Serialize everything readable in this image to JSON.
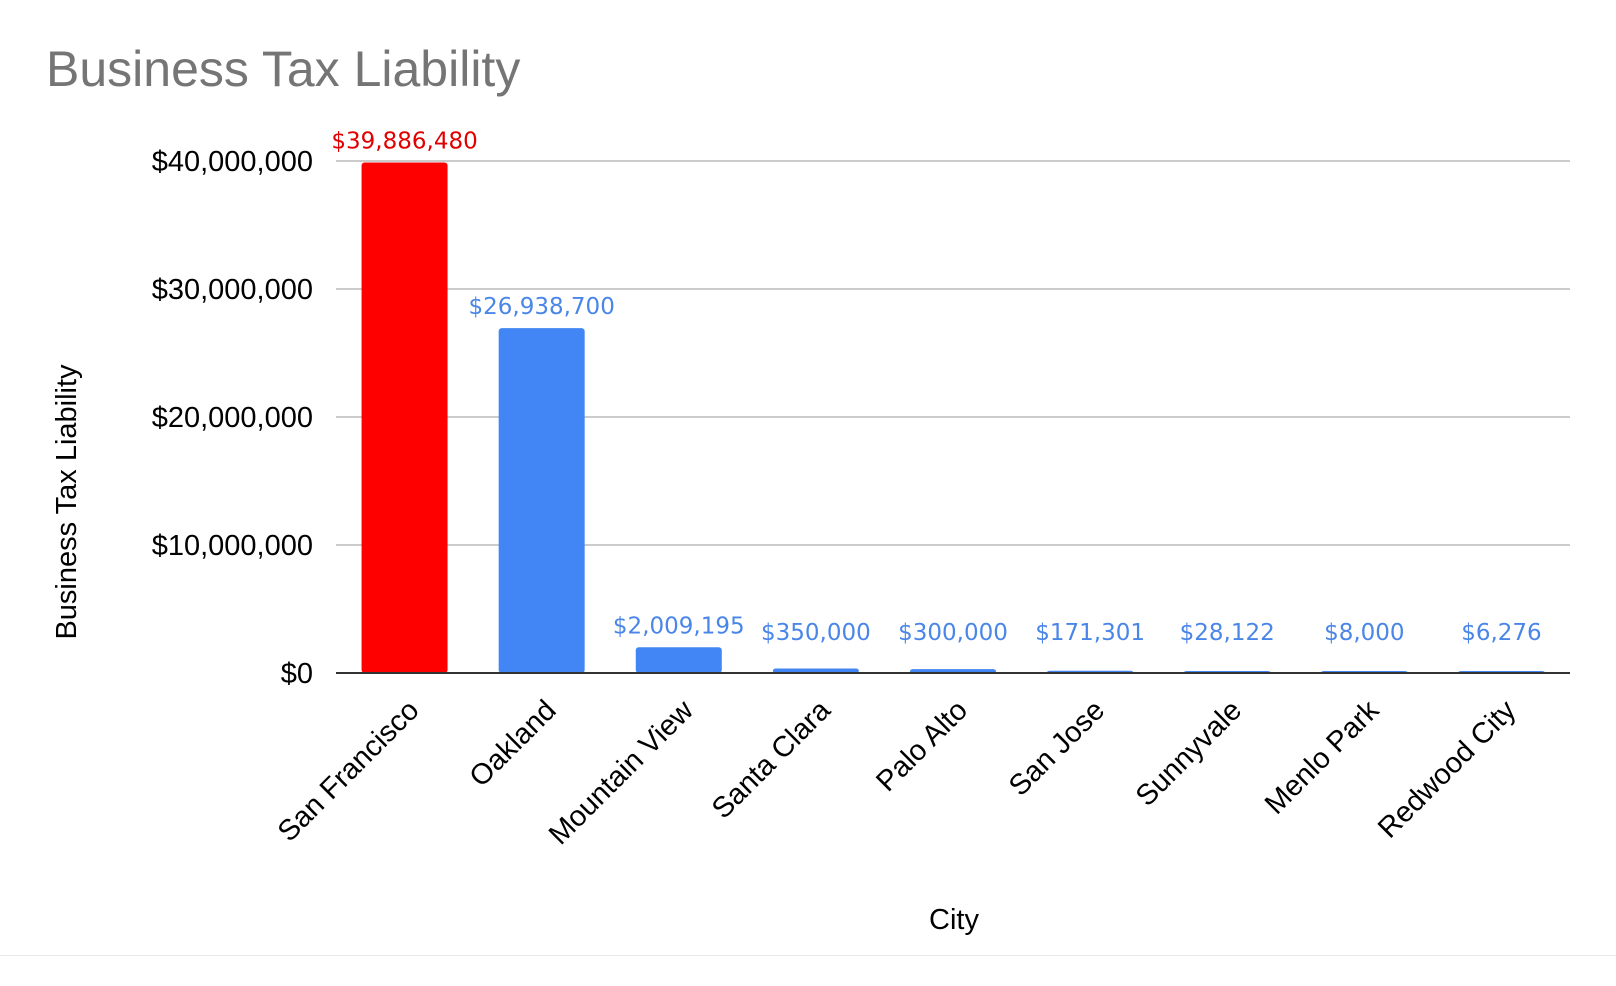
{
  "chart_data": {
    "type": "bar",
    "title": "Business Tax Liability",
    "xlabel": "City",
    "ylabel": "Business Tax Liability",
    "ylim": [
      0,
      40000000
    ],
    "yticks": [
      0,
      10000000,
      20000000,
      30000000,
      40000000
    ],
    "ytick_labels": [
      "$0",
      "$10,000,000",
      "$20,000,000",
      "$30,000,000",
      "$40,000,000"
    ],
    "grid": true,
    "categories": [
      "San Francisco",
      "Oakland",
      "Mountain View",
      "Santa Clara",
      "Palo Alto",
      "San Jose",
      "Sunnyvale",
      "Menlo Park",
      "Redwood City"
    ],
    "values": [
      39886480,
      26938700,
      2009195,
      350000,
      300000,
      171301,
      28122,
      8000,
      6276
    ],
    "data_labels": [
      "$39,886,480",
      "$26,938,700",
      "$2,009,195",
      "$350,000",
      "$300,000",
      "$171,301",
      "$28,122",
      "$8,000",
      "$6,276"
    ],
    "bar_colors": [
      "#ff0000",
      "#4285f4",
      "#4285f4",
      "#4285f4",
      "#4285f4",
      "#4285f4",
      "#4285f4",
      "#4285f4",
      "#4285f4"
    ],
    "label_colors": [
      "#e00000",
      "#4a86e8",
      "#4a86e8",
      "#4a86e8",
      "#4a86e8",
      "#4a86e8",
      "#4a86e8",
      "#4a86e8",
      "#4a86e8"
    ],
    "grid_color": "#cccccc",
    "axis_color": "#333333"
  }
}
